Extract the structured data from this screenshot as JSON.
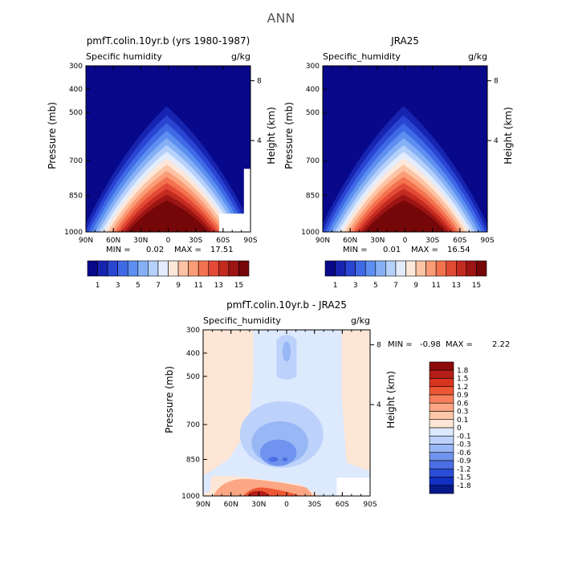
{
  "figure_title": "ANN",
  "chart_data": [
    {
      "type": "heatmap",
      "title": "pmfT.colin.10yr.b (yrs 1980-1987)",
      "subtitle_left": "Specific humidity",
      "subtitle_right": "g/kg",
      "ylabel": "Pressure (mb)",
      "ylabel_right": "Height (km)",
      "x_tick_labels": [
        "90N",
        "60N",
        "30N",
        "0",
        "30S",
        "60S",
        "90S"
      ],
      "y_tick_labels": [
        "300",
        "400",
        "500",
        "700",
        "850",
        "1000"
      ],
      "y_right_tick_labels": [
        "8",
        "4"
      ],
      "min_label": "MIN =",
      "min_value": "0.02",
      "max_label": "MAX =",
      "max_value": "17.51",
      "peak_value": 17.51,
      "missing_region": true
    },
    {
      "type": "heatmap",
      "title": "JRA25",
      "subtitle_left": "Specific_humidity",
      "subtitle_right": "g/kg",
      "ylabel": "Pressure (mb)",
      "ylabel_right": "Height (km)",
      "x_tick_labels": [
        "90N",
        "60N",
        "30N",
        "0",
        "30S",
        "60S",
        "90S"
      ],
      "y_tick_labels": [
        "300",
        "400",
        "500",
        "700",
        "850",
        "1000"
      ],
      "y_right_tick_labels": [
        "8",
        "4"
      ],
      "min_label": "MIN =",
      "min_value": "0.01",
      "max_label": "MAX =",
      "max_value": "16.54",
      "peak_value": 16.54,
      "missing_region": false
    },
    {
      "type": "heatmap",
      "title": "pmfT.colin.10yr.b - JRA25",
      "subtitle_left": "Specific_humidity",
      "subtitle_right": "g/kg",
      "ylabel": "Pressure (mb)",
      "ylabel_right": "Height (km)",
      "x_tick_labels": [
        "90N",
        "60N",
        "30N",
        "0",
        "30S",
        "60S",
        "90S"
      ],
      "y_tick_labels": [
        "300",
        "400",
        "500",
        "700",
        "850",
        "1000"
      ],
      "y_right_tick_labels": [
        "8",
        "4"
      ],
      "min_label": "MIN =",
      "min_value": "-0.98",
      "max_label": "MAX =",
      "max_value": "2.22"
    }
  ],
  "colorbar_top": {
    "tick_labels": [
      "1",
      "3",
      "5",
      "7",
      "9",
      "11",
      "13",
      "15"
    ],
    "colors": [
      "#08088a",
      "#1624b0",
      "#2a45d2",
      "#3f6ae6",
      "#5d8ff0",
      "#86b0f5",
      "#b5d0fa",
      "#e2ecfd",
      "#fde7d8",
      "#fcc3a4",
      "#fa9c76",
      "#f3724f",
      "#e24a35",
      "#c32a20",
      "#9c1514",
      "#760708"
    ]
  },
  "colorbar_diff": {
    "labels": [
      "1.8",
      "1.5",
      "1.2",
      "0.9",
      "0.6",
      "0.3",
      "0.1",
      "0",
      "-0.1",
      "-0.3",
      "-0.6",
      "-0.9",
      "-1.2",
      "-1.5",
      "-1.8"
    ],
    "colors": [
      "#8a0a0a",
      "#b51d17",
      "#d8341f",
      "#ee5734",
      "#f7805a",
      "#fba684",
      "#fdc7aa",
      "#fde6d6",
      "#dde9fd",
      "#bcd2fb",
      "#98b7f5",
      "#6f93ee",
      "#4a6ee3",
      "#2a4ed7",
      "#1230c4",
      "#06188a"
    ]
  },
  "diff_fields": {
    "background": "#fde6d6",
    "neg_weak": "#dde9fd",
    "neg_mid": "#bcd2fb",
    "neg_strong": "#98b7f5",
    "neg_deep": "#6f93ee",
    "neg_core": "#4a6ee3",
    "pos_mid": "#fba684",
    "pos_strong": "#ee5734",
    "pos_core": "#b51d17"
  }
}
